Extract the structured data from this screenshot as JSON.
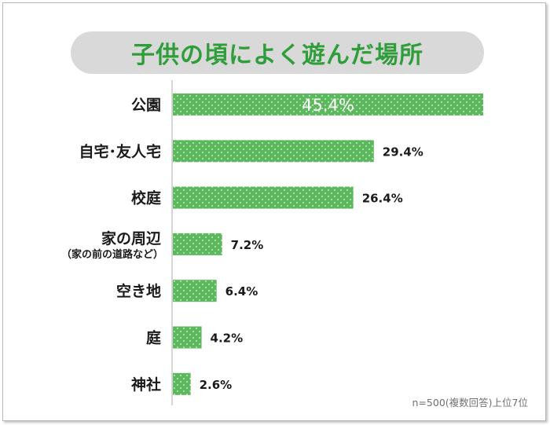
{
  "chart_data": {
    "type": "bar",
    "orientation": "horizontal",
    "title": "子供の頃によく遊んだ場所",
    "categories": [
      {
        "label": "公園",
        "sublabel": ""
      },
      {
        "label": "自宅･友人宅",
        "sublabel": ""
      },
      {
        "label": "校庭",
        "sublabel": ""
      },
      {
        "label": "家の周辺",
        "sublabel": "（家の前の道路など）"
      },
      {
        "label": "空き地",
        "sublabel": ""
      },
      {
        "label": "庭",
        "sublabel": ""
      },
      {
        "label": "神社",
        "sublabel": ""
      }
    ],
    "values": [
      45.4,
      29.4,
      26.4,
      7.2,
      6.4,
      4.2,
      2.6
    ],
    "value_labels": [
      "45.4%",
      "29.4%",
      "26.4%",
      "7.2%",
      "6.4%",
      "4.2%",
      "2.6%"
    ],
    "xlim": [
      0,
      50
    ],
    "unit": "%",
    "bar_color": "#5cb85c",
    "dot_color": "#e6f5e6",
    "axis_color": "#c8c8c8",
    "highlight_label_color": "#ffffff",
    "label_color": "#1a1a1a",
    "note": "n=500(複数回答)上位7位",
    "grid": false
  }
}
